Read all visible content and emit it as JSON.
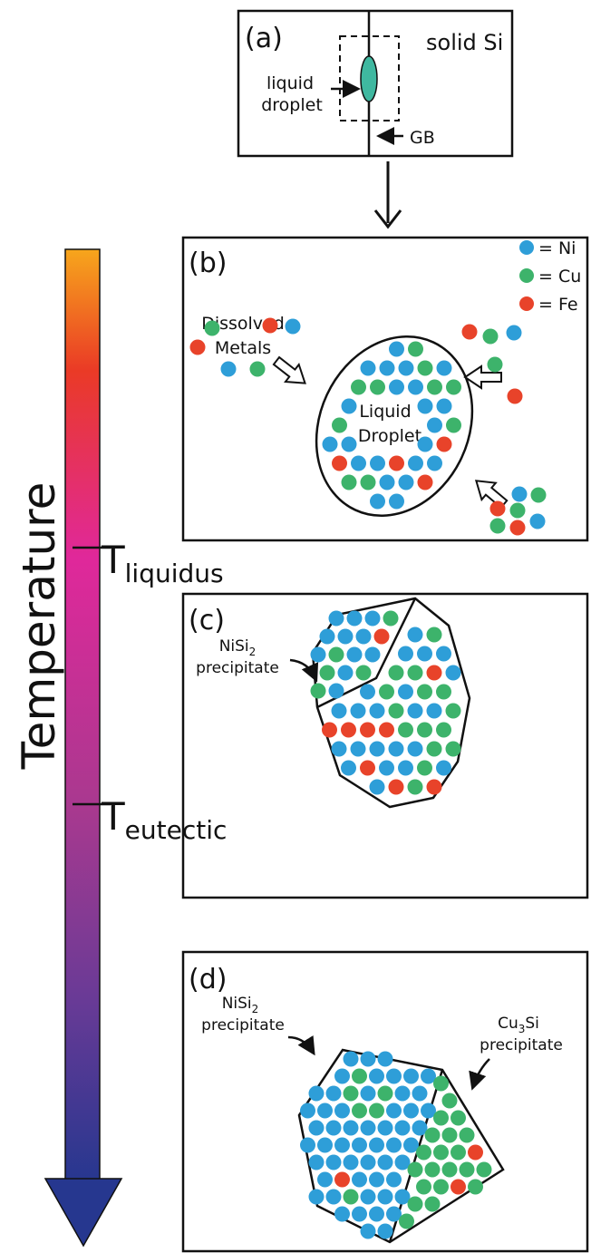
{
  "panel_a": {
    "label": "(a)",
    "solid": "solid Si",
    "droplet": [
      "liquid",
      "droplet"
    ],
    "gb": "GB"
  },
  "panel_b": {
    "label": "(b)",
    "legend": [
      "= Ni",
      "= Cu",
      "= Fe"
    ],
    "dissolved": [
      "Dissolved",
      "Metals"
    ],
    "liquid": [
      "Liquid",
      "Droplet"
    ]
  },
  "temperature": {
    "label": "Temperature",
    "liquidus": {
      "base": "T",
      "sub": "liquidus"
    },
    "eutectic": {
      "base": "T",
      "sub": "eutectic"
    }
  },
  "panel_c": {
    "label": "(c)",
    "nisi2": {
      "base": "NiSi",
      "sub": "2",
      "line2": "precipitate"
    }
  },
  "panel_d": {
    "label": "(d)",
    "nisi2": {
      "base": "NiSi",
      "sub": "2",
      "line2": "precipitate"
    },
    "cu3si": {
      "base": "Cu",
      "sub": "3",
      "rest": "Si",
      "line2": "precipitate"
    }
  }
}
